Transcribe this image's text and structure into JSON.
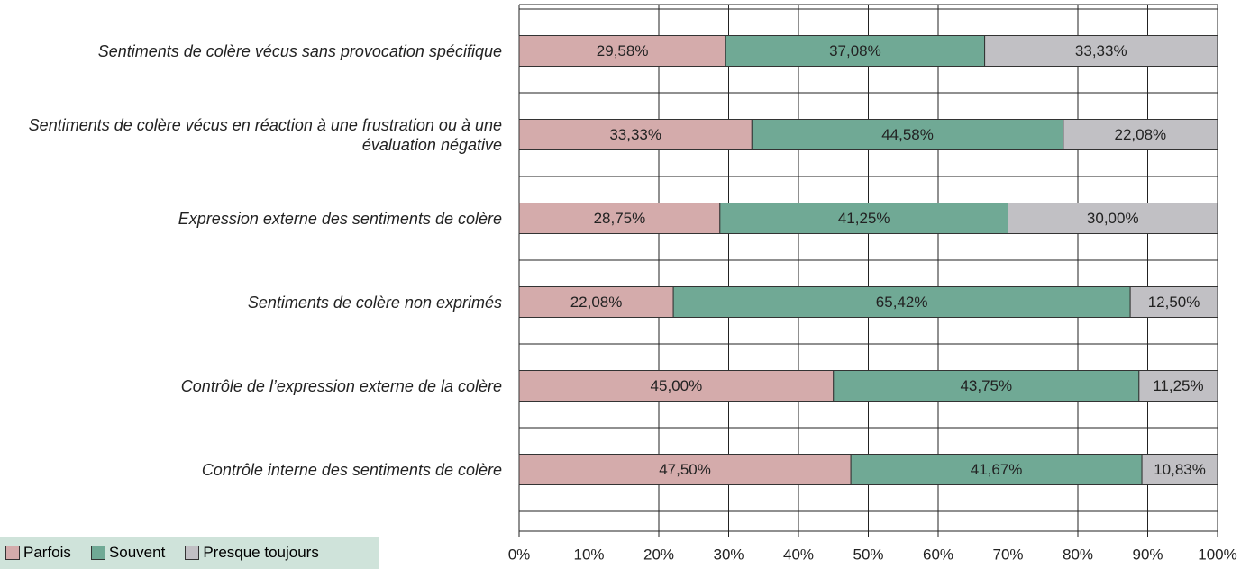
{
  "chart_data": {
    "type": "stacked_bar_horizontal",
    "categories": [
      "Sentiments de colère vécus sans provocation spécifique",
      "Sentiments de colère vécus en réaction à une frustration ou à une évaluation négative",
      "Expression externe des sentiments de colère",
      "Sentiments de colère non exprimés",
      "Contrôle de l’expression externe de la colère",
      "Contrôle interne des sentiments de colère"
    ],
    "series": [
      {
        "name": "Parfois",
        "color": "#d4abab",
        "values": [
          29.58,
          33.33,
          28.75,
          22.08,
          45.0,
          47.5
        ],
        "value_labels": [
          "29,58%",
          "33,33%",
          "28,75%",
          "22,08%",
          "45,00%",
          "47,50%"
        ]
      },
      {
        "name": "Souvent",
        "color": "#70a995",
        "values": [
          37.08,
          44.58,
          41.25,
          65.42,
          43.75,
          41.67
        ],
        "value_labels": [
          "37,08%",
          "44,58%",
          "41,25%",
          "65,42%",
          "43,75%",
          "41,67%"
        ]
      },
      {
        "name": "Presque toujours",
        "color": "#c1c0c4",
        "values": [
          33.33,
          22.08,
          30.0,
          12.5,
          11.25,
          10.83
        ],
        "value_labels": [
          "33,33%",
          "22,08%",
          "30,00%",
          "12,50%",
          "11,25%",
          "10,83%"
        ]
      }
    ],
    "xlim": [
      0,
      100
    ],
    "xticks": [
      {
        "value": 0,
        "label": "0%"
      },
      {
        "value": 10,
        "label": "10%"
      },
      {
        "value": 20,
        "label": "20%"
      },
      {
        "value": 30,
        "label": "30%"
      },
      {
        "value": 40,
        "label": "40%"
      },
      {
        "value": 50,
        "label": "50%"
      },
      {
        "value": 60,
        "label": "60%"
      },
      {
        "value": 70,
        "label": "70%"
      },
      {
        "value": 80,
        "label": "80%"
      },
      {
        "value": 90,
        "label": "90%"
      },
      {
        "value": 100,
        "label": "100%"
      }
    ],
    "grid": true
  }
}
